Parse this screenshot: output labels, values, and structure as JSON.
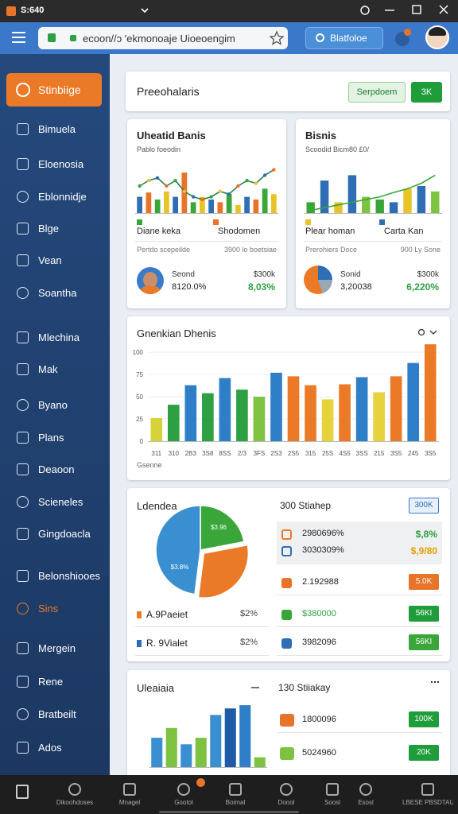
{
  "status": {
    "time": "S:640"
  },
  "browser": {
    "url": "ecoon//ɔ 'ekmonoaje Uioeoengim",
    "search_button": "Blatfoloe"
  },
  "sidebar": {
    "items": [
      "Stinbiige",
      "Bimuela",
      "Eloenosia",
      "Eblonnidje",
      "Blge",
      "Vean",
      "Soantha",
      "Mlechina",
      "Mak",
      "Byano",
      "Plans",
      "Deaoon",
      "Scieneles",
      "Gingdoacla",
      "Belonshiooes",
      "Sins",
      "Mergein",
      "Rene",
      "Bratbeilt",
      "Ados"
    ]
  },
  "header": {
    "title": "Preeohalaris",
    "button_outline": "Serpdoem",
    "button_filled": "3K"
  },
  "cards": [
    {
      "title": "Uheatid Banis",
      "subtitle": "Pablo foeodin",
      "chart": {
        "type": "bar",
        "values": [
          3,
          3.8,
          2.5,
          4,
          3,
          7.5,
          2,
          3,
          2.5,
          2,
          3.5,
          1.5,
          3,
          2.5,
          4.5,
          3.5
        ],
        "colors": [
          "#2f6db5",
          "#e8742a",
          "#3aa63a",
          "#e8c32a"
        ],
        "line_values": [
          5,
          6,
          6.5,
          5,
          6,
          4,
          3,
          2.5,
          3,
          4,
          3.5,
          5,
          6,
          5.5,
          7,
          8
        ],
        "line_color": "#2e7d4f",
        "ylim": [
          0,
          10
        ]
      },
      "legend": [
        "Diane keka",
        "Shodomen"
      ],
      "footer": [
        "Pertdo scepeilde",
        "3900 lo boetsiae"
      ],
      "stat_label": "Seond",
      "stat_value": "8120.0%",
      "stat_right": "$300k",
      "stat_change": "8,03%"
    },
    {
      "title": "Bisnis",
      "subtitle": "Scoodid Bicm80 £0/",
      "chart": {
        "type": "bar",
        "values": [
          2,
          6,
          2,
          7,
          3,
          2.5,
          2,
          4.5,
          5,
          4
        ],
        "colors": [
          "#3aa63a",
          "#2f6db5",
          "#e8c32a",
          "#2f6db5",
          "#7ec242"
        ],
        "line_values": [
          0.5,
          1,
          1.5,
          2,
          2.5,
          3,
          3.8,
          4.5,
          5.5,
          7
        ],
        "line_color": "#3aa63a",
        "ylim": [
          0,
          10
        ]
      },
      "legend": [
        "Plear homan",
        "Carta Kan"
      ],
      "footer": [
        "Prerohiers Doce",
        "900 Ly Sone"
      ],
      "stat_label": "Sonid",
      "stat_value": "3,20038",
      "stat_right": "$300k",
      "stat_change": "6,220%"
    }
  ],
  "main_chart": {
    "type": "bar",
    "title": "Gnenkian Dhenis",
    "x_label": "Gsenne",
    "categories": [
      "311",
      "310",
      "2B3",
      "3S8",
      "8SS",
      "2/3",
      "3FS",
      "2S3",
      "2S5",
      "315",
      "25S",
      "4S5",
      "3SS",
      "215",
      "3S5",
      "245",
      "3S5"
    ],
    "values": [
      26,
      41,
      63,
      54,
      71,
      58,
      50,
      77,
      73,
      63,
      47,
      64,
      72,
      55,
      73,
      88,
      109
    ],
    "colors": [
      "#d6d23a",
      "#2ea043",
      "#2f7fc8",
      "#2ea043",
      "#2f7fc8",
      "#2ea043",
      "#7ec242",
      "#2f7fc8",
      "#ea7a27",
      "#ea7a27",
      "#e5d23c",
      "#ea7a27",
      "#2f7fc8",
      "#e5d23c",
      "#ea7a27",
      "#2f7fc8",
      "#ea7a27"
    ],
    "ylim": [
      0,
      110
    ],
    "yticks": [
      0,
      25,
      50,
      75,
      100
    ],
    "grid": true
  },
  "pie_card": {
    "title": "Ldendea",
    "chart": {
      "type": "pie",
      "values": [
        22,
        30,
        48
      ],
      "colors": [
        "#3aa63a",
        "#ea7a27",
        "#3a8fd0"
      ]
    },
    "annotations": [
      "$3.96",
      "$3.8%"
    ],
    "legend": [
      {
        "name": "A.9Paeiet",
        "value": "$2%",
        "color": "#ea7a27"
      },
      {
        "name": "R. 9Vialet",
        "value": "$2%",
        "color": "#2f6db5"
      }
    ],
    "list": {
      "title": "300 Stiahep",
      "badge": "300K",
      "rows": [
        {
          "text": "2980696%",
          "value": "$,8%"
        },
        {
          "text": "3030309%",
          "value": "$,9/80"
        },
        {
          "text": "2.192988",
          "badge": "5.0K",
          "badge_color": "#e8742a"
        },
        {
          "text": "$380000",
          "badge": "56KI",
          "badge_color": "#1f9d3a"
        },
        {
          "text": "3982096",
          "badge": "56KI",
          "badge_color": "#3aa63a"
        }
      ]
    }
  },
  "bottom_card": {
    "title": "Uleaiaia",
    "chart": {
      "type": "bar",
      "values": [
        45,
        60,
        35,
        45,
        80,
        90,
        95,
        15
      ],
      "colors": [
        "#3a8fd0",
        "#7ec242",
        "#3a8fd0",
        "#7ec242",
        "#3a8fd0",
        "#1f5aa6",
        "#2f7fc8",
        "#7ec242"
      ],
      "ylim": [
        0,
        100
      ]
    },
    "list": {
      "title": "130 Stiiakay",
      "rows": [
        {
          "text": "1800096",
          "badge": "100K",
          "badge_color": "#1f9d3a"
        },
        {
          "text": "5024960",
          "badge": "20K",
          "badge_color": "#1f9d3a"
        }
      ]
    }
  },
  "bottom_nav": {
    "items": [
      "Dikoohdoses",
      "Mnagel",
      "Gootol",
      "Boimal",
      "Doool",
      "Soosl",
      "Esosl",
      "LBESE PBSDTAUN"
    ]
  }
}
